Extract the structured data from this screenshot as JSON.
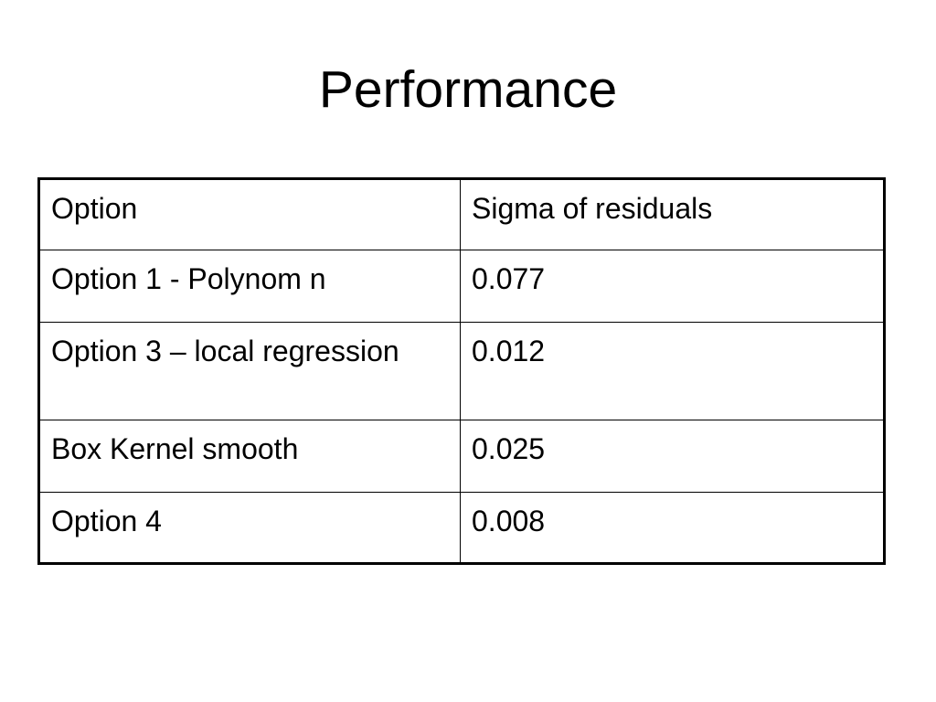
{
  "slide": {
    "title": "Performance"
  },
  "table": {
    "headers": [
      "Option",
      "Sigma of residuals"
    ],
    "rows": [
      {
        "option": "Option 1 - Polynom n",
        "sigma": "0.077"
      },
      {
        "option": "Option 3 – local regression",
        "sigma": "0.012"
      },
      {
        "option": "Box Kernel smooth",
        "sigma": "0.025"
      },
      {
        "option": "Option 4",
        "sigma": "0.008"
      }
    ]
  }
}
